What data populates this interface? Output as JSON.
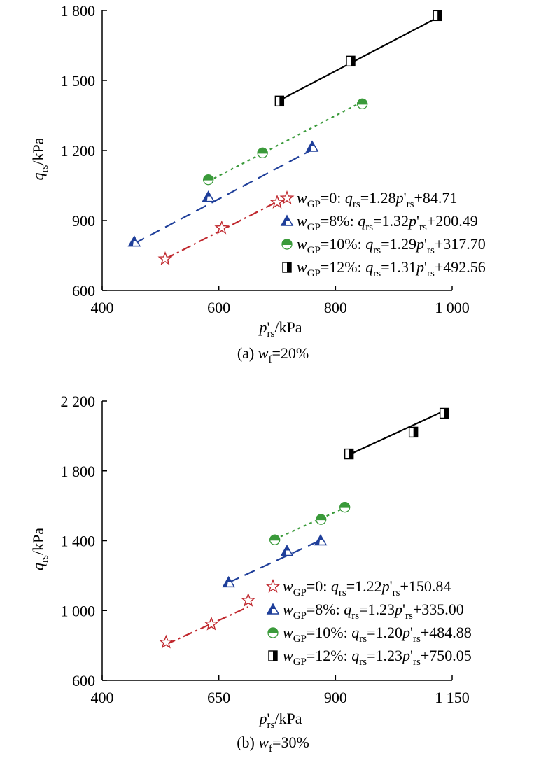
{
  "chart_data": [
    {
      "type": "scatter",
      "caption": {
        "prefix": "(a) ",
        "var": "w",
        "sub": "f",
        "suffix": "=20%"
      },
      "xlabel": {
        "main": "p",
        "prime": "'",
        "sub": "rs",
        "rest": "/kPa"
      },
      "ylabel": {
        "main": "q",
        "sub": "rs",
        "rest": "/kPa"
      },
      "xlim": [
        400,
        1000
      ],
      "ylim": [
        600,
        1800
      ],
      "xticks": [
        400,
        600,
        800,
        1000
      ],
      "xtick_labels": [
        "400",
        "600",
        "800",
        "1 000"
      ],
      "yticks": [
        600,
        900,
        1200,
        1500,
        1800
      ],
      "ytick_labels": [
        "600",
        "900",
        "1 200",
        "1 500",
        "1 800"
      ],
      "legend_position": "lower-right",
      "series": [
        {
          "name": "wGP=0",
          "marker": "star",
          "color": "#c0272d",
          "dash": "dashdot",
          "points": [
            [
              508,
              735
            ],
            [
              605,
              868
            ],
            [
              700,
              978
            ]
          ],
          "fit": {
            "slope": 1.28,
            "intercept": 84.71
          },
          "line_range": [
            508,
            700
          ],
          "legend": {
            "w": "w",
            "sub": "GP",
            "val": "=0: ",
            "q": "q",
            "qsub": "rs",
            "coef": "=1.28",
            "p": "p",
            "prime": "'",
            "psub": "rs",
            "const": "+84.71"
          }
        },
        {
          "name": "wGP=8%",
          "marker": "triangle",
          "color": "#1f3f9a",
          "dash": "dash",
          "points": [
            [
              455,
              808
            ],
            [
              582,
              1000
            ],
            [
              760,
              1215
            ]
          ],
          "fit": {
            "slope": 1.32,
            "intercept": 200.49
          },
          "line_range": [
            455,
            760
          ],
          "legend": {
            "w": "w",
            "sub": "GP",
            "val": "=8%: ",
            "q": "q",
            "qsub": "rs",
            "coef": "=1.32",
            "p": "p",
            "prime": "'",
            "psub": "rs",
            "const": "+200.49"
          }
        },
        {
          "name": "wGP=10%",
          "marker": "circle",
          "color": "#3a9a3a",
          "dash": "dot",
          "points": [
            [
              582,
              1075
            ],
            [
              675,
              1190
            ],
            [
              846,
              1400
            ]
          ],
          "fit": {
            "slope": 1.29,
            "intercept": 317.7
          },
          "line_range": [
            582,
            846
          ],
          "legend": {
            "w": "w",
            "sub": "GP",
            "val": "=10%: ",
            "q": "q",
            "qsub": "rs",
            "coef": "=1.29",
            "p": "p",
            "prime": "'",
            "psub": "rs",
            "const": "+317.70"
          }
        },
        {
          "name": "wGP=12%",
          "marker": "square",
          "color": "#000000",
          "dash": "solid",
          "points": [
            [
              704,
              1412
            ],
            [
              826,
              1583
            ],
            [
              975,
              1778
            ]
          ],
          "fit": {
            "slope": 1.31,
            "intercept": 492.56
          },
          "line_range": [
            704,
            975
          ],
          "legend": {
            "w": "w",
            "sub": "GP",
            "val": "=12%: ",
            "q": "q",
            "qsub": "rs",
            "coef": "=1.31",
            "p": "p",
            "prime": "'",
            "psub": "rs",
            "const": "+492.56"
          }
        }
      ]
    },
    {
      "type": "scatter",
      "caption": {
        "prefix": "(b) ",
        "var": "w",
        "sub": "f",
        "suffix": "=30%"
      },
      "xlabel": {
        "main": "p",
        "prime": "'",
        "sub": "rs",
        "rest": "/kPa"
      },
      "ylabel": {
        "main": "q",
        "sub": "rs",
        "rest": "/kPa"
      },
      "xlim": [
        400,
        1150
      ],
      "ylim": [
        600,
        2200
      ],
      "xticks": [
        400,
        650,
        900,
        1150
      ],
      "xtick_labels": [
        "400",
        "650",
        "900",
        "1 150"
      ],
      "yticks": [
        600,
        1000,
        1400,
        1800,
        2200
      ],
      "ytick_labels": [
        "600",
        "1 000",
        "1 400",
        "1 800",
        "2 200"
      ],
      "legend_position": "lower-right",
      "series": [
        {
          "name": "wGP=0",
          "marker": "star",
          "color": "#c0272d",
          "dash": "dashdot",
          "points": [
            [
              537,
              818
            ],
            [
              634,
              922
            ],
            [
              713,
              1058
            ]
          ],
          "fit": {
            "slope": 1.22,
            "intercept": 150.84
          },
          "line_range": [
            537,
            713
          ],
          "legend": {
            "w": "w",
            "sub": "GP",
            "val": "=0: ",
            "q": "q",
            "qsub": "rs",
            "coef": "=1.22",
            "p": "p",
            "prime": "'",
            "psub": "rs",
            "const": "+150.84"
          }
        },
        {
          "name": "wGP=8%",
          "marker": "triangle",
          "color": "#1f3f9a",
          "dash": "dash",
          "points": [
            [
              671,
              1160
            ],
            [
              796,
              1340
            ],
            [
              868,
              1400
            ]
          ],
          "fit": {
            "slope": 1.23,
            "intercept": 335.0
          },
          "line_range": [
            671,
            868
          ],
          "legend": {
            "w": "w",
            "sub": "GP",
            "val": "=8%: ",
            "q": "q",
            "qsub": "rs",
            "coef": "=1.23",
            "p": "p",
            "prime": "'",
            "psub": "rs",
            "const": "+335.00"
          }
        },
        {
          "name": "wGP=10%",
          "marker": "circle",
          "color": "#3a9a3a",
          "dash": "dot",
          "points": [
            [
              770,
              1405
            ],
            [
              869,
              1522
            ],
            [
              920,
              1592
            ]
          ],
          "fit": {
            "slope": 1.2,
            "intercept": 484.88
          },
          "line_range": [
            770,
            920
          ],
          "legend": {
            "w": "w",
            "sub": "GP",
            "val": "=10%: ",
            "q": "q",
            "qsub": "rs",
            "coef": "=1.20",
            "p": "p",
            "prime": "'",
            "psub": "rs",
            "const": "+484.88"
          }
        },
        {
          "name": "wGP=12%",
          "marker": "square",
          "color": "#000000",
          "dash": "solid",
          "points": [
            [
              929,
              1897
            ],
            [
              1067,
              2022
            ],
            [
              1133,
              2130
            ]
          ],
          "fit": {
            "slope": 1.23,
            "intercept": 750.05
          },
          "line_range": [
            929,
            1133
          ],
          "legend": {
            "w": "w",
            "sub": "GP",
            "val": "=12%: ",
            "q": "q",
            "qsub": "rs",
            "coef": "=1.23",
            "p": "p",
            "prime": "'",
            "psub": "rs",
            "const": "+750.05"
          }
        }
      ]
    }
  ]
}
